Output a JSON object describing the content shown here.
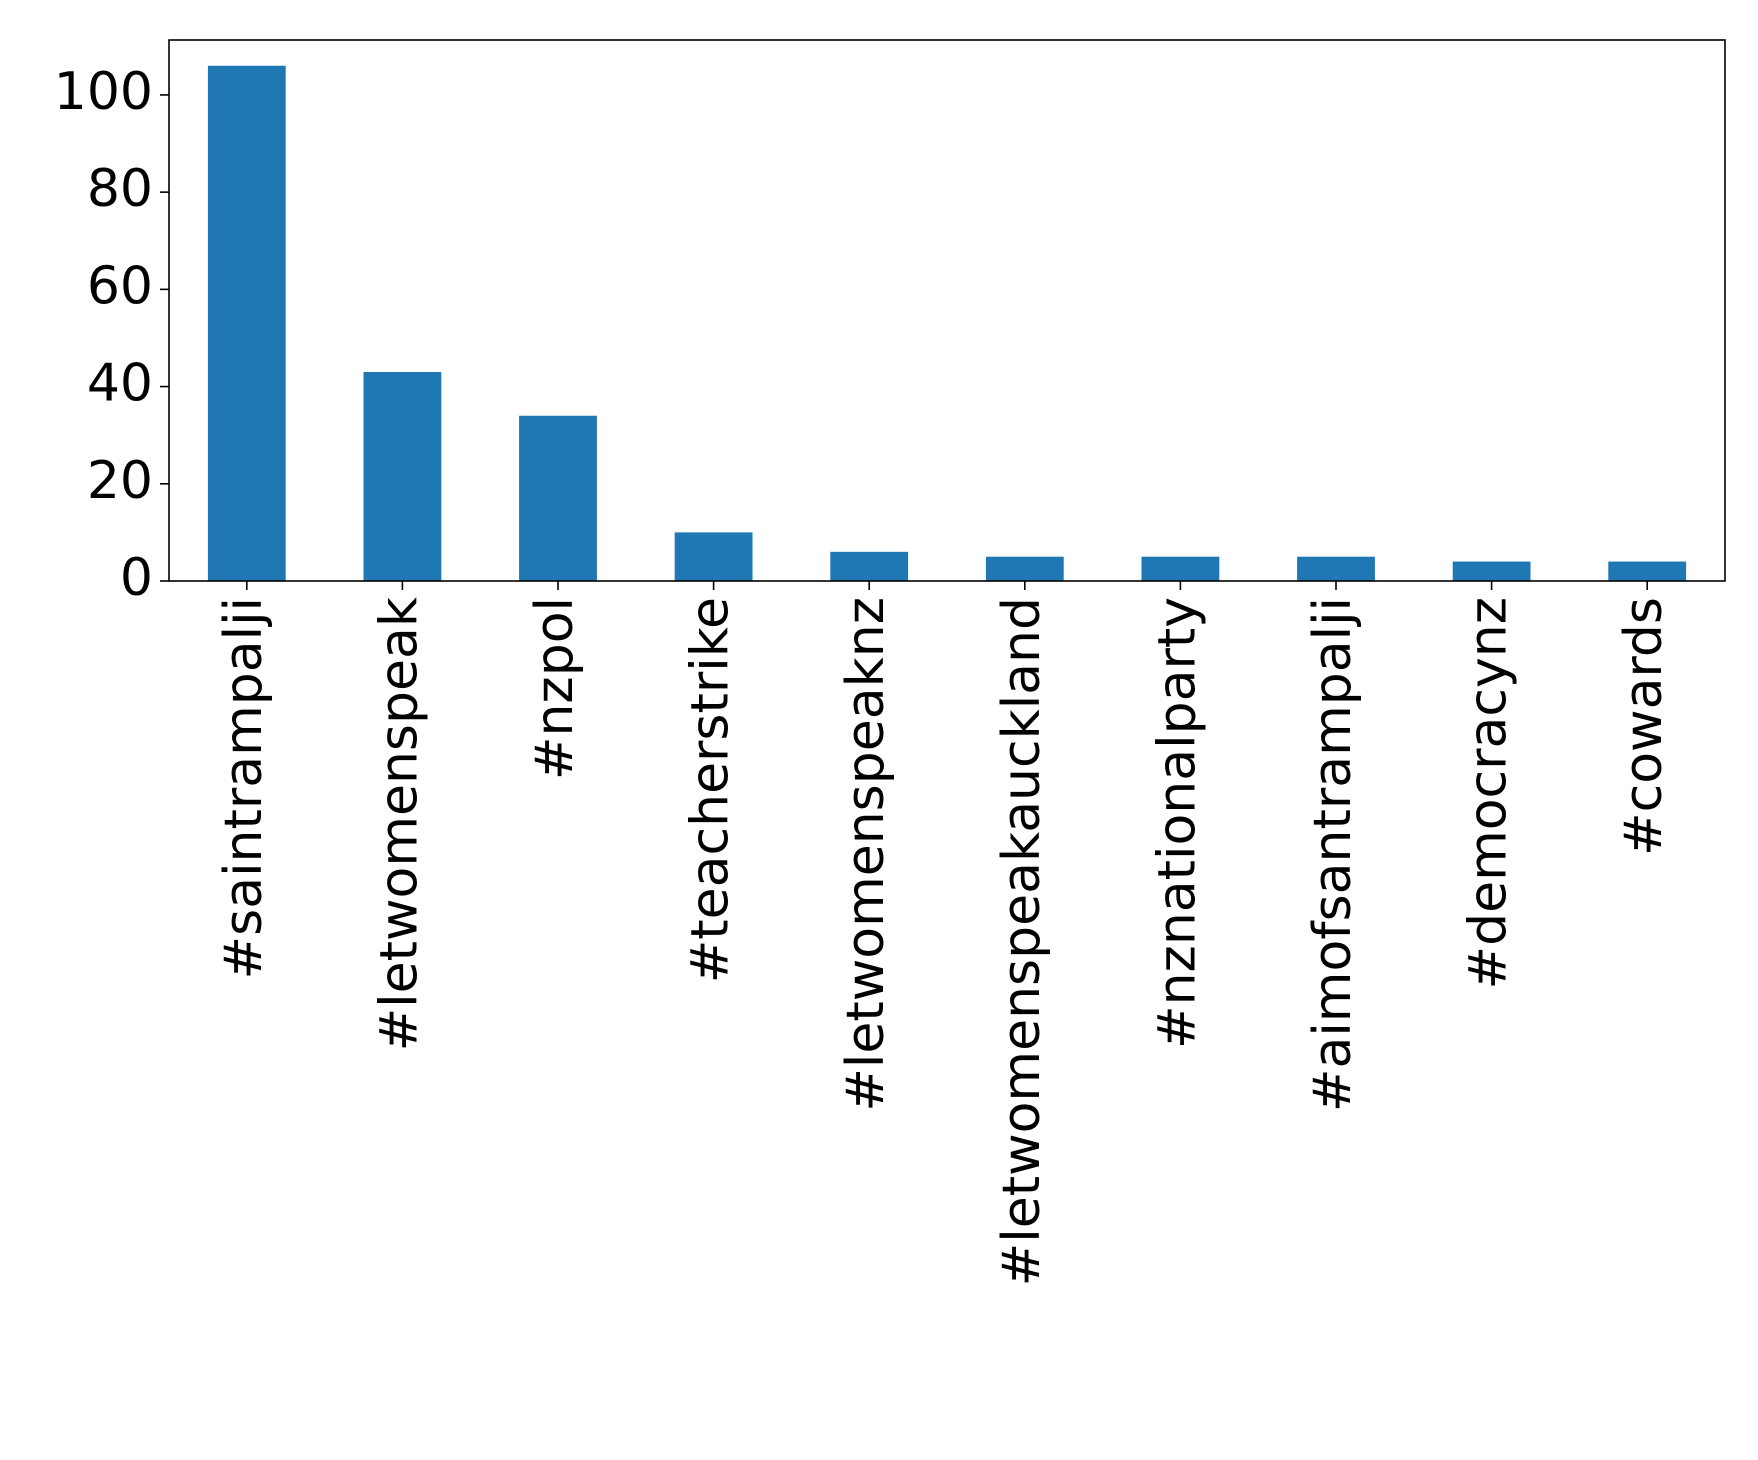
{
  "chart_data": {
    "type": "bar",
    "title": "",
    "xlabel": "",
    "ylabel": "",
    "categories": [
      "#saintrampalji",
      "#letwomenspeak",
      "#nzpol",
      "#teacherstrike",
      "#letwomenspeaknz",
      "#letwomenspeakauckland",
      "#nznationalparty",
      "#aimofsantrampalji",
      "#democracynz",
      "#cowards"
    ],
    "values": [
      106,
      43,
      34,
      10,
      6,
      5,
      5,
      5,
      4,
      4
    ],
    "ylim": [
      0,
      111.3
    ],
    "yticks": [
      0,
      20,
      40,
      60,
      80,
      100
    ],
    "bar_color": "#1f77b4",
    "grid": false,
    "legend": "none"
  }
}
